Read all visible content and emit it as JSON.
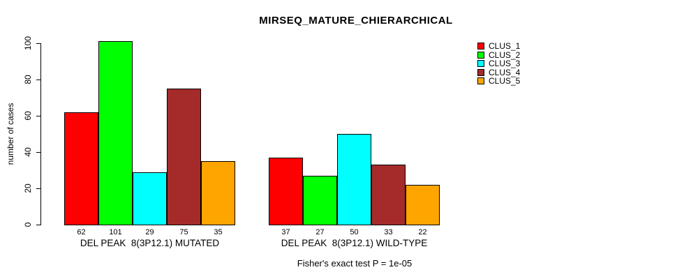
{
  "title": "MIRSEQ_MATURE_CHIERARCHICAL",
  "subtitle": "Fisher's exact test P = 1e-05",
  "chart_data": {
    "type": "bar",
    "title": "MIRSEQ_MATURE_CHIERARCHICAL",
    "xlabel": "",
    "ylabel": "number of cases",
    "ylim": [
      0,
      100
    ],
    "yticks": [
      0,
      20,
      40,
      60,
      80,
      100
    ],
    "grid": false,
    "legend_position": "topright",
    "categories": [
      "DEL PEAK  8(3P12.1) MUTATED",
      "DEL PEAK  8(3P12.1) WILD-TYPE"
    ],
    "series": [
      {
        "name": "CLUS_1",
        "color": "#ff0000",
        "values": [
          62,
          37
        ]
      },
      {
        "name": "CLUS_2",
        "color": "#00ff00",
        "values": [
          101,
          27
        ]
      },
      {
        "name": "CLUS_3",
        "color": "#00ffff",
        "values": [
          29,
          50
        ]
      },
      {
        "name": "CLUS_4",
        "color": "#a52a2a",
        "values": [
          75,
          33
        ]
      },
      {
        "name": "CLUS_5",
        "color": "#ffa500",
        "values": [
          35,
          22
        ]
      }
    ],
    "bar_value_labels": [
      [
        62,
        101,
        29,
        75,
        35
      ],
      [
        37,
        27,
        50,
        33,
        22
      ]
    ],
    "annotation": "Fisher's exact test P = 1e-05"
  },
  "legend": {
    "items": [
      {
        "label": "CLUS_1",
        "color": "#ff0000"
      },
      {
        "label": "CLUS_2",
        "color": "#00ff00"
      },
      {
        "label": "CLUS_3",
        "color": "#00ffff"
      },
      {
        "label": "CLUS_4",
        "color": "#a52a2a"
      },
      {
        "label": "CLUS_5",
        "color": "#ffa500"
      }
    ]
  }
}
